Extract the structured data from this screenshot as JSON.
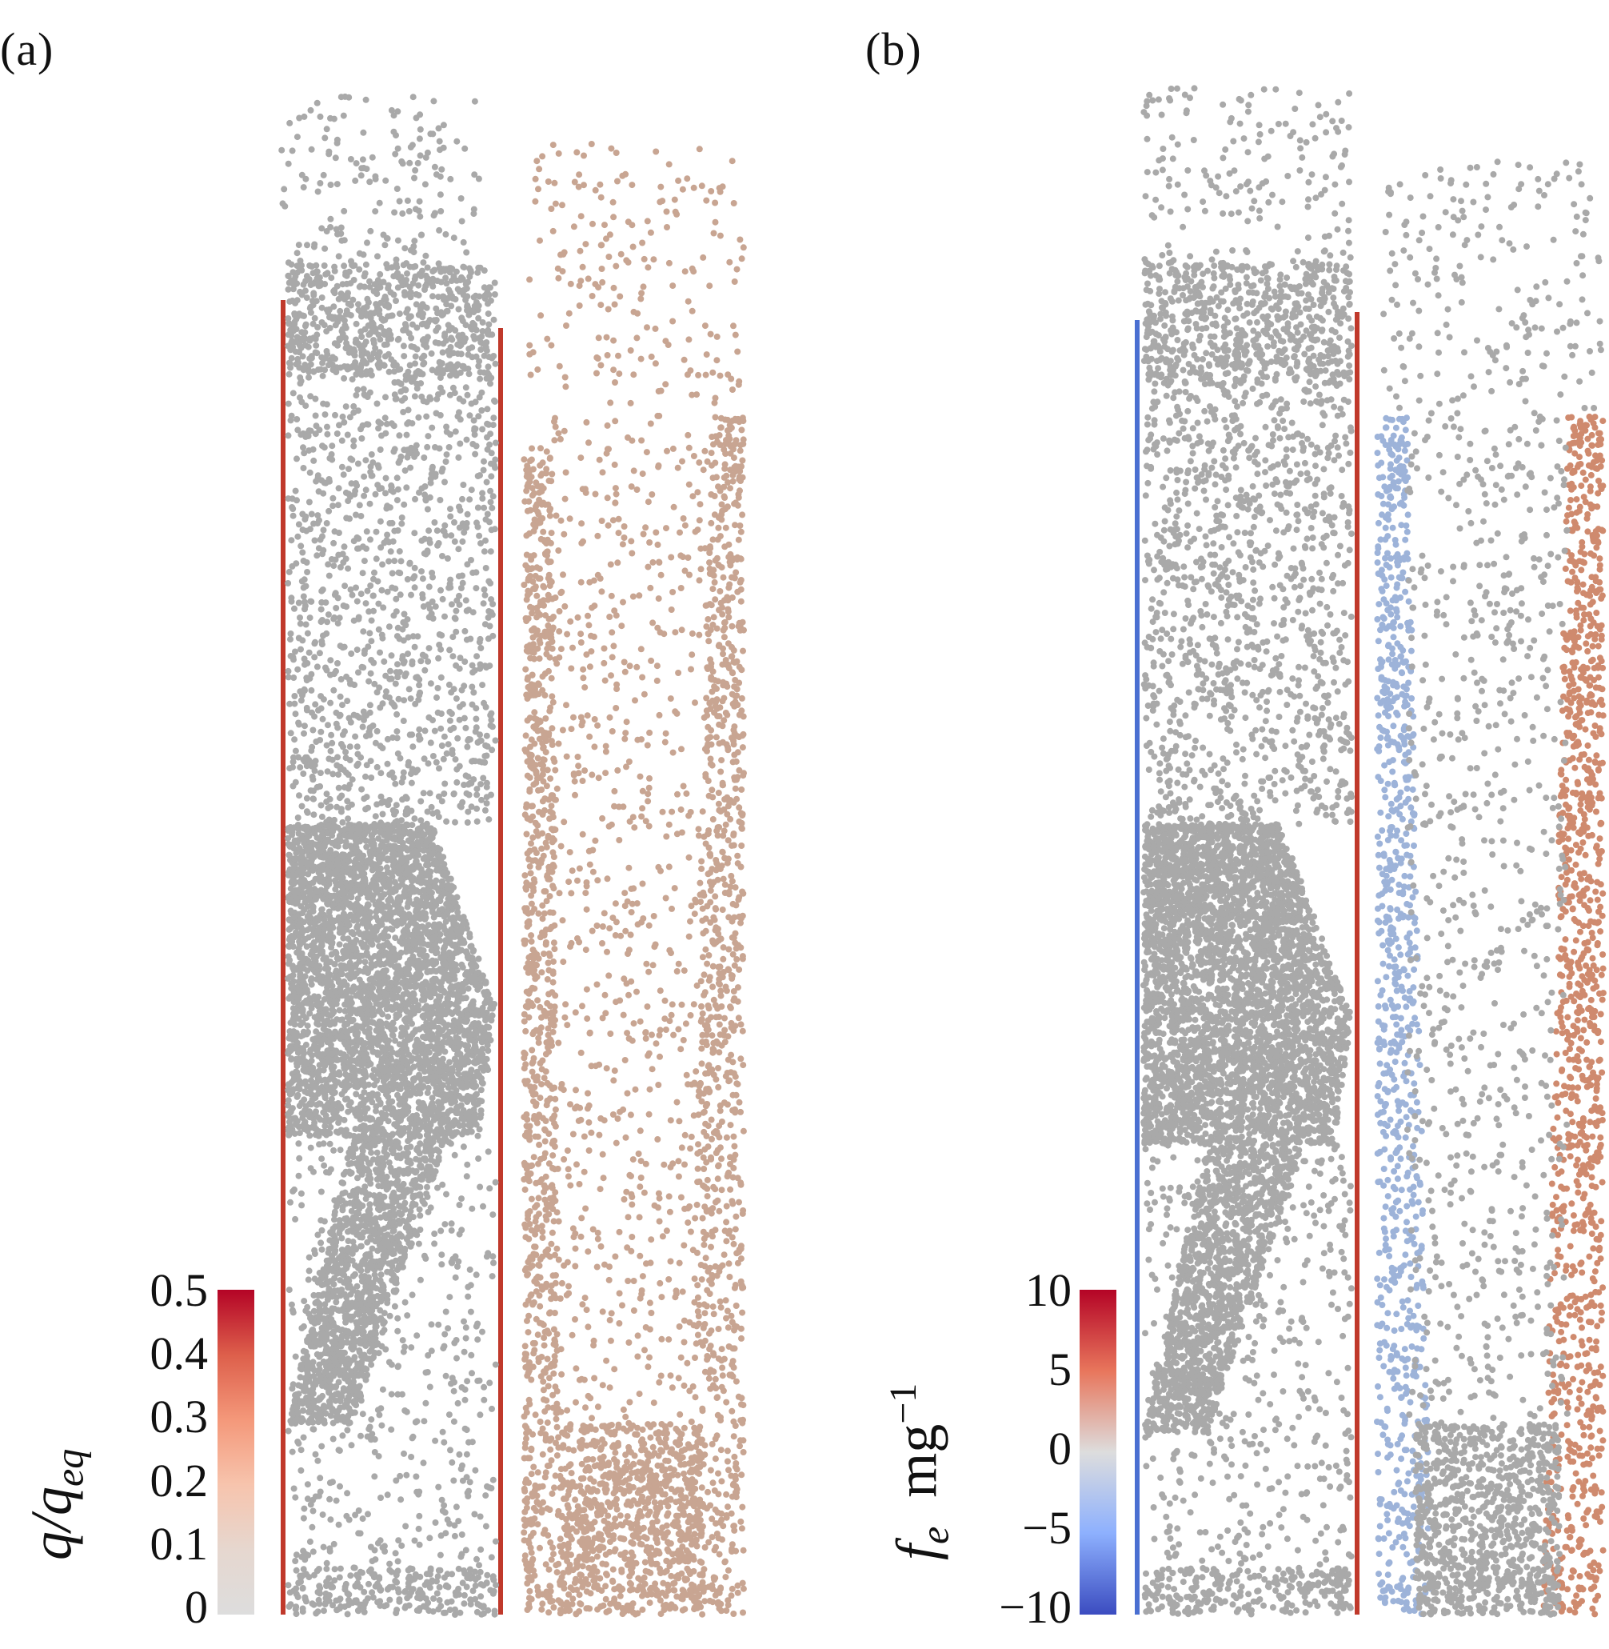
{
  "panels": [
    {
      "label": "(a)",
      "label_letter": "a",
      "colorbar": {
        "title_main": "q/q",
        "title_sub": "eq",
        "ticks": [
          "0.5",
          "0.4",
          "0.3",
          "0.2",
          "0.1",
          "0"
        ],
        "range": [
          0,
          0.5
        ],
        "colors": [
          "#b40426",
          "#dd5f4b",
          "#f4987a",
          "#f7c4ad",
          "#e6d7cf",
          "#dddddd"
        ]
      }
    },
    {
      "label": "(b)",
      "label_letter": "b",
      "colorbar": {
        "title_main": "f",
        "title_sub": "e",
        "title_units": "mg",
        "title_exp": "−1",
        "ticks": [
          "10",
          "5",
          "0",
          "−5",
          "−10"
        ],
        "range": [
          -10,
          10
        ],
        "colors": [
          "#b40426",
          "#e8765c",
          "#dddddd",
          "#8db0fe",
          "#3b4cc0"
        ]
      }
    }
  ],
  "colors": {
    "grey_particle": "#a9a9a9",
    "charged_particle": "#c8a592",
    "wall_red": "#c0392b",
    "wall_blue": "#4a6fd1"
  }
}
